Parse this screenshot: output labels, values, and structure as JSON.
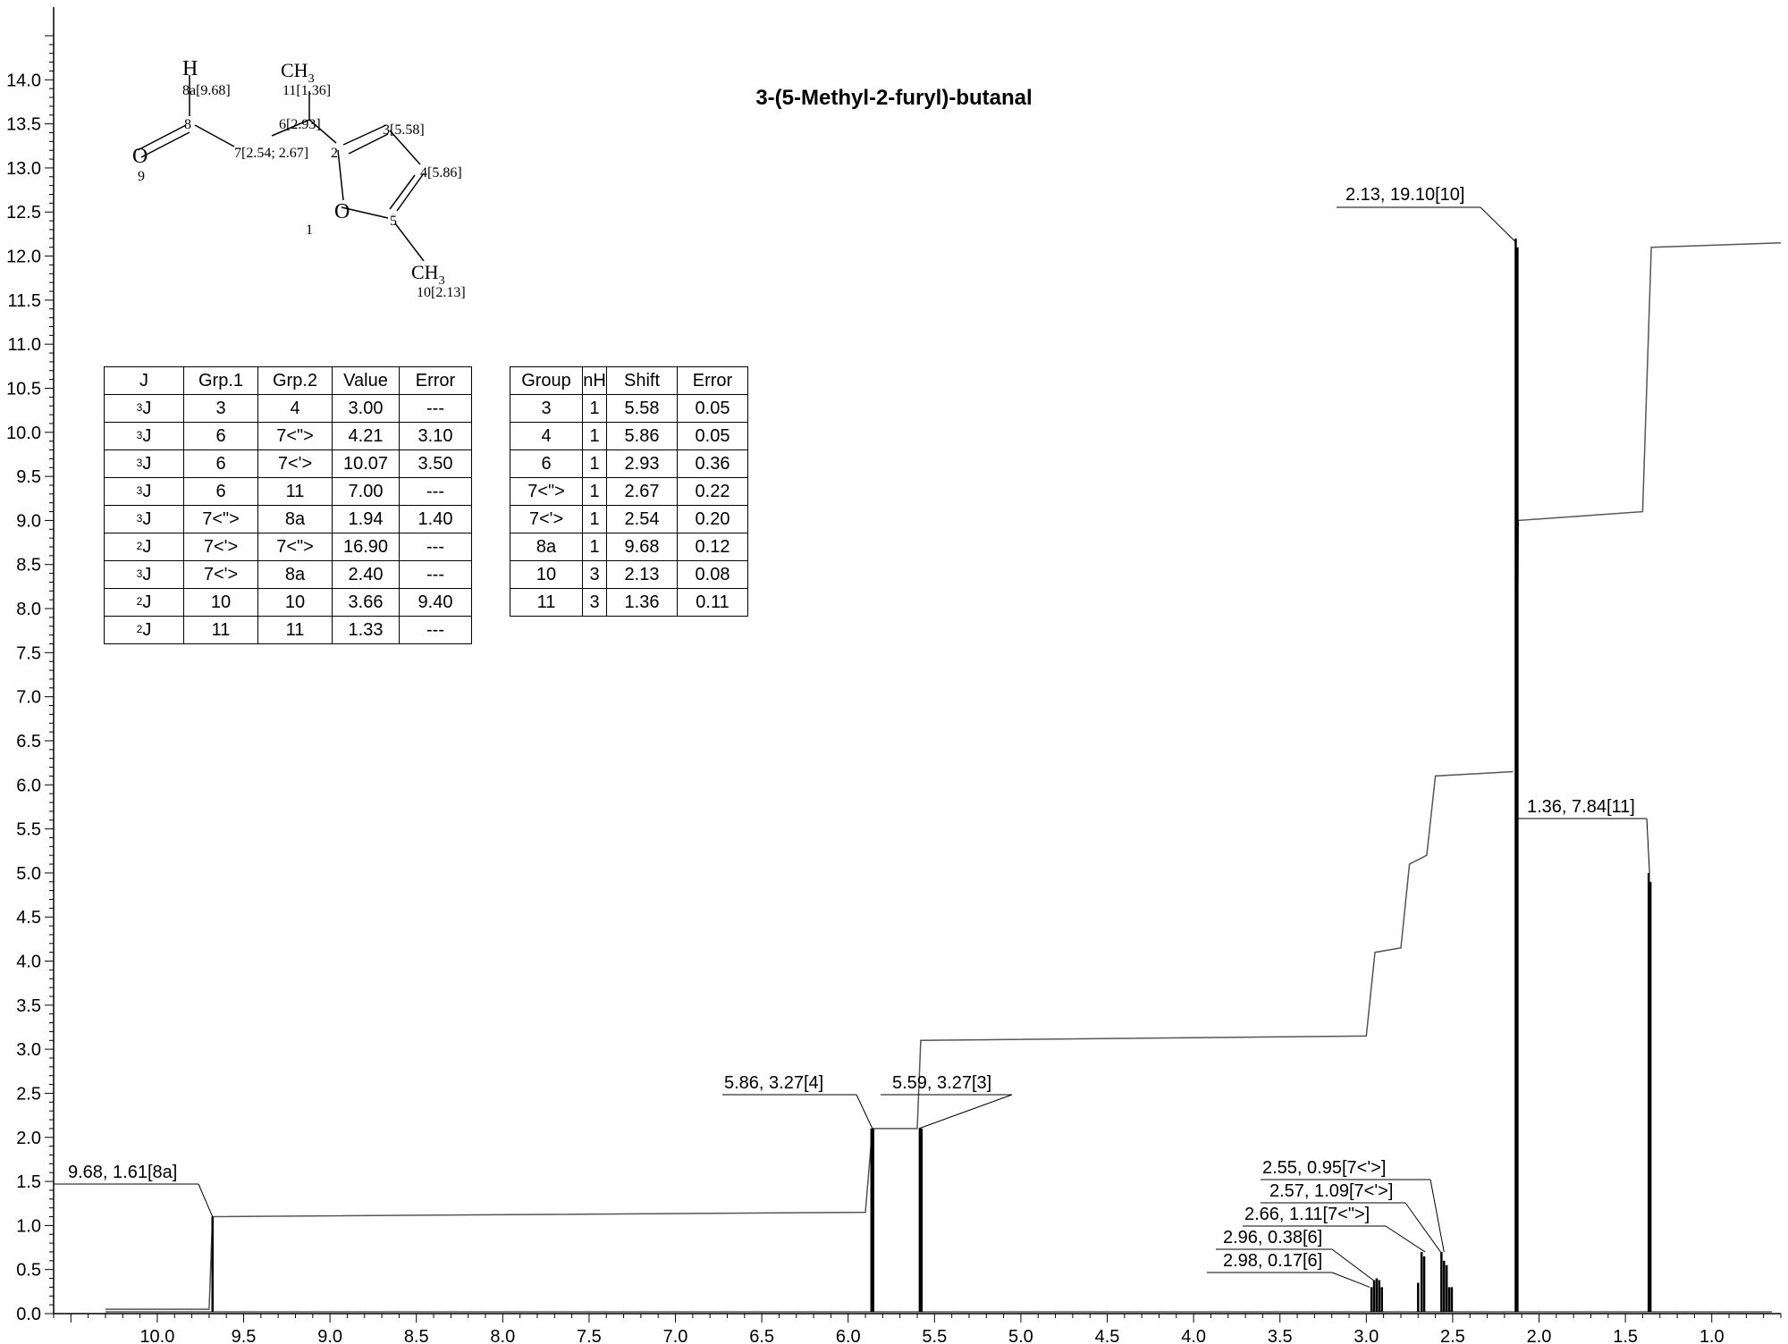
{
  "chart_data": {
    "type": "line",
    "title": "3-(5-Methyl-2-furyl)-butanal",
    "xlabel": "",
    "ylabel": "",
    "xlim": [
      10.6,
      0.6
    ],
    "ylim": [
      0,
      14.5
    ],
    "x_ticks": [
      "10.0",
      "9.5",
      "9.0",
      "8.5",
      "8.0",
      "7.5",
      "7.0",
      "6.5",
      "6.0",
      "5.5",
      "5.0",
      "4.5",
      "4.0",
      "3.5",
      "3.0",
      "2.5",
      "2.0",
      "1.5",
      "1.0"
    ],
    "y_ticks": [
      "0.0",
      "0.5",
      "1.0",
      "1.5",
      "2.0",
      "2.5",
      "3.0",
      "3.5",
      "4.0",
      "4.5",
      "5.0",
      "5.5",
      "6.0",
      "6.5",
      "7.0",
      "7.5",
      "8.0",
      "8.5",
      "9.0",
      "9.5",
      "10.0",
      "10.5",
      "11.0",
      "11.5",
      "12.0",
      "12.5",
      "13.0",
      "13.5",
      "14.0"
    ],
    "peaks": [
      {
        "x": 9.68,
        "height": 1.1
      },
      {
        "x": 5.865,
        "height": 2.1
      },
      {
        "x": 5.855,
        "height": 2.1
      },
      {
        "x": 5.585,
        "height": 2.1
      },
      {
        "x": 5.575,
        "height": 2.1
      },
      {
        "x": 2.97,
        "height": 0.3
      },
      {
        "x": 2.955,
        "height": 0.38
      },
      {
        "x": 2.94,
        "height": 0.4
      },
      {
        "x": 2.925,
        "height": 0.38
      },
      {
        "x": 2.91,
        "height": 0.3
      },
      {
        "x": 2.7,
        "height": 0.35
      },
      {
        "x": 2.68,
        "height": 0.7
      },
      {
        "x": 2.665,
        "height": 0.65
      },
      {
        "x": 2.565,
        "height": 0.7
      },
      {
        "x": 2.55,
        "height": 0.6
      },
      {
        "x": 2.535,
        "height": 0.55
      },
      {
        "x": 2.52,
        "height": 0.3
      },
      {
        "x": 2.505,
        "height": 0.3
      },
      {
        "x": 2.135,
        "height": 12.2
      },
      {
        "x": 2.125,
        "height": 12.1
      },
      {
        "x": 1.365,
        "height": 5.0
      },
      {
        "x": 1.355,
        "height": 4.9
      }
    ],
    "integral_1": [
      [
        10.3,
        0.05
      ],
      [
        9.7,
        0.05
      ],
      [
        9.68,
        1.1
      ],
      [
        5.9,
        1.15
      ],
      [
        5.86,
        2.1
      ],
      [
        5.6,
        2.1
      ],
      [
        5.58,
        3.1
      ],
      [
        3.0,
        3.15
      ],
      [
        2.95,
        4.1
      ],
      [
        2.8,
        4.15
      ],
      [
        2.75,
        5.1
      ],
      [
        2.65,
        5.2
      ],
      [
        2.6,
        6.1
      ],
      [
        2.15,
        6.15
      ]
    ],
    "integral_2": [
      [
        2.13,
        6.2
      ],
      [
        2.12,
        9.0
      ],
      [
        1.4,
        9.1
      ],
      [
        1.35,
        12.1
      ],
      [
        0.6,
        12.15
      ]
    ],
    "annotations": [
      {
        "label": "9.68, 1.61[8a]",
        "x": 9.68
      },
      {
        "label": "5.86, 3.27[4]",
        "x": 5.86
      },
      {
        "label": "5.59, 3.27[3]",
        "x": 5.59
      },
      {
        "label": "2.55, 0.95[7<'>]",
        "x": 2.55
      },
      {
        "label": "2.57, 1.09[7<'>]",
        "x": 2.57
      },
      {
        "label": "2.66, 1.11[7<\">]",
        "x": 2.66
      },
      {
        "label": "2.96, 0.38[6]",
        "x": 2.96
      },
      {
        "label": "2.98, 0.17[6]",
        "x": 2.98
      },
      {
        "label": "2.13, 19.10[10]",
        "x": 2.13
      },
      {
        "label": "1.36, 7.84[11]",
        "x": 1.36
      }
    ],
    "grid": false,
    "legend": "none"
  },
  "molecule": {
    "h_label": "H",
    "ch3_top": "CH3",
    "ch3_top_main": "CH",
    "ch3_top_sub": "3",
    "ch3_bottom_main": "CH",
    "ch3_bottom_sub": "3",
    "o_carbonyl": "O",
    "o_ring": "O",
    "labels": {
      "a8": "8a[9.68]",
      "a11": "11[1.36]",
      "a6": "6[2.93]",
      "a3": "3[5.58]",
      "a8num": "8",
      "a7": "7[2.54; 2.67]",
      "a2": "2",
      "a4": "4[5.86]",
      "a9": "9",
      "a1": "1",
      "a5": "5",
      "a10": "10[2.13]"
    }
  },
  "j_table": {
    "headers": [
      "J",
      "Grp.1",
      "Grp.2",
      "Value",
      "Error"
    ],
    "rows": [
      {
        "n": "3",
        "j": "J",
        "g1": "3",
        "g2": "4",
        "value": "3.00",
        "error": "---"
      },
      {
        "n": "3",
        "j": "J",
        "g1": "6",
        "g2": "7<\">",
        "value": "4.21",
        "error": "3.10"
      },
      {
        "n": "3",
        "j": "J",
        "g1": "6",
        "g2": "7<'>",
        "value": "10.07",
        "error": "3.50"
      },
      {
        "n": "3",
        "j": "J",
        "g1": "6",
        "g2": "11",
        "value": "7.00",
        "error": "---"
      },
      {
        "n": "3",
        "j": "J",
        "g1": "7<\">",
        "g2": "8a",
        "value": "1.94",
        "error": "1.40"
      },
      {
        "n": "2",
        "j": "J",
        "g1": "7<'>",
        "g2": "7<\">",
        "value": "16.90",
        "error": "---"
      },
      {
        "n": "3",
        "j": "J",
        "g1": "7<'>",
        "g2": "8a",
        "value": "2.40",
        "error": "---"
      },
      {
        "n": "2",
        "j": "J",
        "g1": "10",
        "g2": "10",
        "value": "3.66",
        "error": "9.40"
      },
      {
        "n": "2",
        "j": "J",
        "g1": "11",
        "g2": "11",
        "value": "1.33",
        "error": "---"
      }
    ]
  },
  "shift_table": {
    "headers": [
      "Group",
      "nH",
      "Shift",
      "Error"
    ],
    "rows": [
      {
        "group": "3",
        "nh": "1",
        "shift": "5.58",
        "error": "0.05"
      },
      {
        "group": "4",
        "nh": "1",
        "shift": "5.86",
        "error": "0.05"
      },
      {
        "group": "6",
        "nh": "1",
        "shift": "2.93",
        "error": "0.36"
      },
      {
        "group": "7<\">",
        "nh": "1",
        "shift": "2.67",
        "error": "0.22"
      },
      {
        "group": "7<'>",
        "nh": "1",
        "shift": "2.54",
        "error": "0.20"
      },
      {
        "group": "8a",
        "nh": "1",
        "shift": "9.68",
        "error": "0.12"
      },
      {
        "group": "10",
        "nh": "3",
        "shift": "2.13",
        "error": "0.08"
      },
      {
        "group": "11",
        "nh": "3",
        "shift": "1.36",
        "error": "0.11"
      }
    ]
  }
}
